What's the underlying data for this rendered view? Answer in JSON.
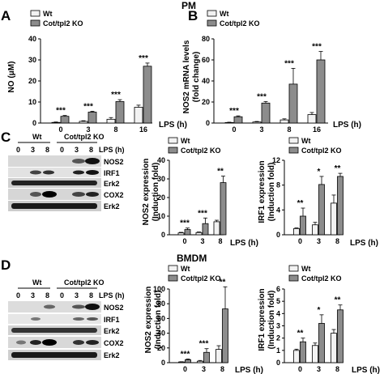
{
  "header_pm": "PM",
  "header_bmdm": "BMDM",
  "panels": {
    "A": {
      "letter": "A",
      "ylabel": "NO (μM)",
      "xlabel": "LPS (h)",
      "legend": [
        "Wt",
        "Cot/tpl2 KO"
      ]
    },
    "B": {
      "letter": "B",
      "ylabel_line1": "NOS2 mRNA levels",
      "ylabel_line2": "(fold change)",
      "xlabel": "LPS (h)",
      "legend": [
        "Wt",
        "Cot/tpl2 KO"
      ]
    },
    "C": {
      "letter": "C",
      "blot_headers": [
        "Wt",
        "Cot/tpl2 KO"
      ],
      "blot_times": [
        "0",
        "3",
        "8",
        "0",
        "3",
        "8"
      ],
      "blot_time_label": "LPS (h)",
      "blot_rows": [
        "NOS2",
        "IRF1",
        "Erk2",
        "COX2",
        "Erk2"
      ],
      "c2_ylabel_line1": "NOS2 expression",
      "c2_ylabel_line2": "(Induction  fold)",
      "c3_ylabel_line1": "IRF1 expression",
      "c3_ylabel_line2": "(Induction  fold)",
      "xlabel": "LPS (h)",
      "legend": [
        "Wt",
        "Cot/tpl2 KO"
      ]
    },
    "D": {
      "letter": "D",
      "blot_headers": [
        "Wt",
        "Cot/tpl2 KO"
      ],
      "blot_times": [
        "0",
        "3",
        "8",
        "0",
        "3",
        "8"
      ],
      "blot_time_label": "LPS (h)",
      "blot_rows": [
        "NOS2",
        "IRF1",
        "Erk2",
        "COX2",
        "Erk2"
      ],
      "d2_ylabel_line1": "NOS2 expression",
      "d2_ylabel_line2": "(Induction  fold)",
      "d3_ylabel_line1": "IRF1 expression",
      "d3_ylabel_line2": "(Induction  fold)",
      "xlabel": "LPS (h)",
      "legend": [
        "Wt",
        "Cot/tpl2 KO"
      ]
    }
  },
  "colors": {
    "wt": "#f2f2f2",
    "ko": "#8c8c8c"
  },
  "chart_data": [
    {
      "id": "A",
      "type": "bar",
      "categories": [
        "0",
        "3",
        "8",
        "16"
      ],
      "series": [
        {
          "name": "Wt",
          "values": [
            0.3,
            0.8,
            1.8,
            7.5
          ],
          "errors": [
            0.2,
            0.3,
            0.8,
            1.0
          ]
        },
        {
          "name": "Cot/tpl2 KO",
          "values": [
            3.2,
            5.2,
            10.2,
            27
          ],
          "errors": [
            0.4,
            0.4,
            0.9,
            1.5
          ]
        }
      ],
      "ylim": [
        0,
        40
      ],
      "yticks": [
        0,
        10,
        20,
        30,
        40
      ],
      "significance": [
        "***",
        "***",
        "***",
        "***"
      ]
    },
    {
      "id": "B",
      "type": "bar",
      "categories": [
        "0",
        "3",
        "8",
        "16"
      ],
      "series": [
        {
          "name": "Wt",
          "values": [
            0.5,
            1,
            3,
            8
          ],
          "errors": [
            0.3,
            0.5,
            1,
            2
          ]
        },
        {
          "name": "Cot/tpl2 KO",
          "values": [
            6,
            19,
            37,
            60
          ],
          "errors": [
            0.8,
            1.5,
            15,
            8
          ]
        }
      ],
      "ylim": [
        0,
        80
      ],
      "yticks": [
        0,
        20,
        40,
        60,
        80
      ],
      "significance": [
        "***",
        "***",
        "***",
        "***"
      ]
    },
    {
      "id": "C2",
      "type": "bar",
      "categories": [
        "0",
        "3",
        "8"
      ],
      "series": [
        {
          "name": "Wt",
          "values": [
            1,
            1.2,
            7
          ],
          "errors": [
            0.3,
            0.3,
            0.8
          ]
        },
        {
          "name": "Cot/tpl2 KO",
          "values": [
            2.8,
            6,
            28
          ],
          "errors": [
            0.8,
            3,
            3.5
          ]
        }
      ],
      "ylim": [
        0,
        40
      ],
      "yticks": [
        0,
        10,
        20,
        30,
        40
      ],
      "significance": [
        "***",
        "***",
        "**"
      ]
    },
    {
      "id": "C3",
      "type": "bar",
      "categories": [
        "0",
        "3",
        "8"
      ],
      "series": [
        {
          "name": "Wt",
          "values": [
            1,
            1.6,
            5.1
          ],
          "errors": [
            0.1,
            0.4,
            1.3
          ]
        },
        {
          "name": "Cot/tpl2 KO",
          "values": [
            3,
            8.1,
            9.4
          ],
          "errors": [
            1.3,
            1.3,
            0.5
          ]
        }
      ],
      "ylim": [
        0,
        12
      ],
      "yticks": [
        0,
        4,
        8,
        12
      ],
      "significance": [
        "**",
        "*",
        "**"
      ]
    },
    {
      "id": "D2",
      "type": "bar",
      "categories": [
        "0",
        "3",
        "8"
      ],
      "series": [
        {
          "name": "Wt",
          "values": [
            1,
            2,
            18
          ],
          "errors": [
            0.3,
            1,
            5
          ]
        },
        {
          "name": "Cot/tpl2 KO",
          "values": [
            4,
            14,
            73
          ],
          "errors": [
            1,
            5,
            30
          ]
        }
      ],
      "ylim": [
        0,
        100
      ],
      "yticks": [
        0,
        20,
        40,
        60,
        80,
        100
      ],
      "significance": [
        "***",
        "***",
        "**"
      ]
    },
    {
      "id": "D3",
      "type": "bar",
      "categories": [
        "0",
        "3",
        "8"
      ],
      "series": [
        {
          "name": "Wt",
          "values": [
            1,
            1.4,
            2.4
          ],
          "errors": [
            0.1,
            0.2,
            0.3
          ]
        },
        {
          "name": "Cot/tpl2 KO",
          "values": [
            1.7,
            3.2,
            4.3
          ],
          "errors": [
            0.3,
            0.7,
            0.4
          ]
        }
      ],
      "ylim": [
        0,
        6
      ],
      "yticks": [
        0,
        1,
        2,
        3,
        4,
        5,
        6
      ],
      "significance": [
        "**",
        "*",
        "**"
      ]
    }
  ]
}
